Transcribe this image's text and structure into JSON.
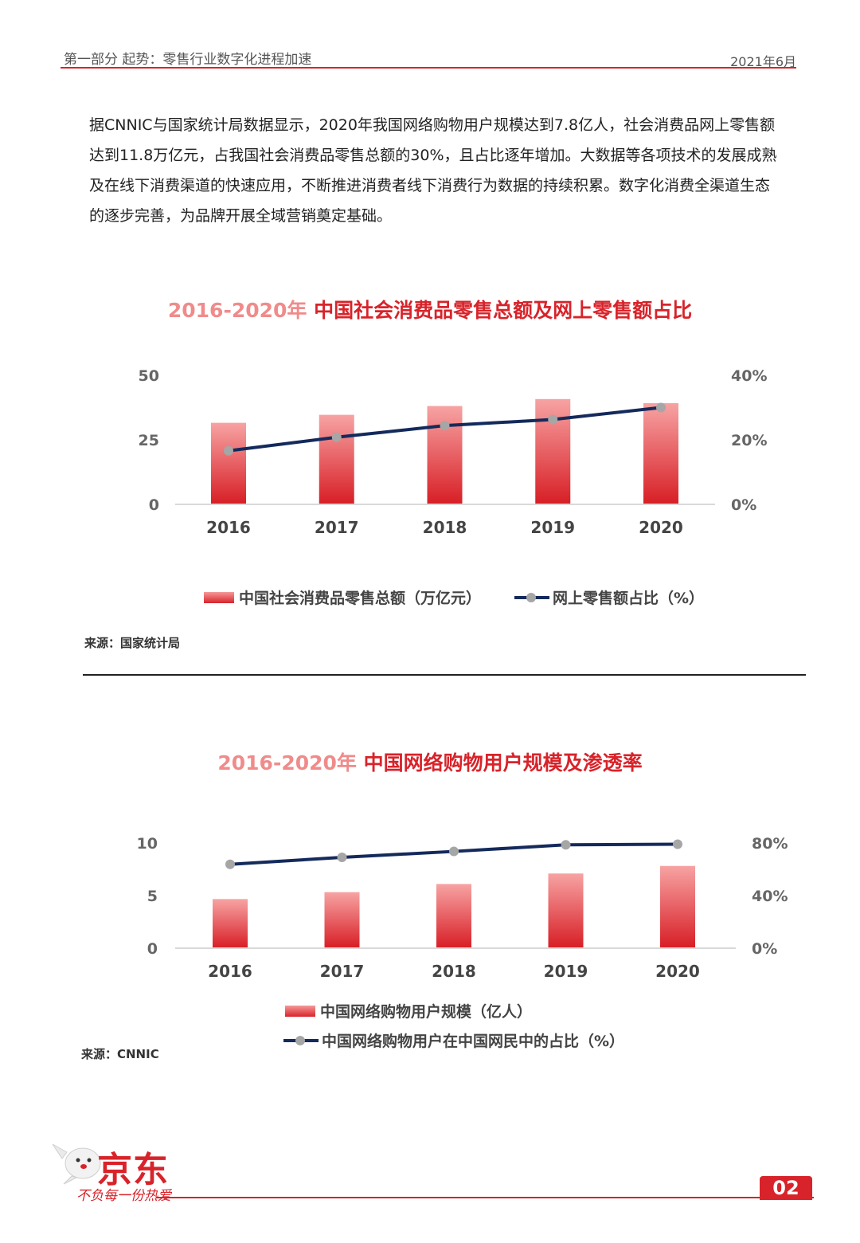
{
  "header": {
    "section": "第一部分 起势：零售行业数字化进程加速",
    "date": "2021年6月"
  },
  "intro": "据CNNIC与国家统计局数据显示，2020年我国网络购物用户规模达到7.8亿人，社会消费品网上零售额达到11.8万亿元，占我国社会消费品零售总额的30%，且占比逐年增加。大数据等各项技术的发展成熟及在线下消费渠道的快速应用，不断推进消费者线下消费行为数据的持续积累。数字化消费全渠道生态的逐步完善，为品牌开展全域营销奠定基础。",
  "chart1_title": {
    "years": "2016-2020年",
    "main": "中国社会消费品零售总额及网上零售额占比"
  },
  "chart2_title": {
    "years": "2016-2020年",
    "main": "中国网络购物用户规模及渗透率"
  },
  "chart1_legend": {
    "bar": "中国社会消费品零售总额（万亿元）",
    "line": "网上零售额占比（%）"
  },
  "chart2_legend": {
    "bar": "中国网络购物用户规模（亿人）",
    "line": "中国网络购物用户在中国网民中的占比（%）"
  },
  "chart1_source": "来源：国家统计局",
  "chart2_source": "来源：CNNIC",
  "logo": {
    "brand": "京东",
    "slogan": "不负每一份热爱"
  },
  "page_number": "02",
  "colors": {
    "accent": "#d8232a",
    "accent_light": "#f59a9a",
    "line": "#142a5c",
    "marker": "#a6a6a6"
  },
  "chart_data": [
    {
      "type": "bar",
      "categories": [
        "2016",
        "2017",
        "2018",
        "2019",
        "2020"
      ],
      "series": [
        {
          "name": "中国社会消费品零售总额（万亿元）",
          "type": "bar",
          "axis": "left",
          "values": [
            31.6,
            34.7,
            38.1,
            40.8,
            39.2
          ]
        },
        {
          "name": "网上零售额占比（%）",
          "type": "line",
          "axis": "right",
          "values": [
            16.6,
            20.8,
            24.4,
            26.3,
            30.0
          ]
        }
      ],
      "y_left": {
        "ylim": [
          0,
          50
        ],
        "ticks": [
          "0",
          "25",
          "50"
        ]
      },
      "y_right": {
        "ylim": [
          0,
          40
        ],
        "ticks": [
          "0%",
          "20%",
          "40%"
        ]
      },
      "legend": "bottom",
      "grid": false
    },
    {
      "type": "bar",
      "categories": [
        "2016",
        "2017",
        "2018",
        "2019",
        "2020"
      ],
      "series": [
        {
          "name": "中国网络购物用户规模（亿人）",
          "type": "bar",
          "axis": "left",
          "values": [
            4.67,
            5.33,
            6.1,
            7.1,
            7.82
          ]
        },
        {
          "name": "中国网络购物用户在中国网民中的占比（%）",
          "type": "line",
          "axis": "right",
          "values": [
            63.8,
            69.1,
            73.6,
            78.6,
            79.1
          ]
        }
      ],
      "y_left": {
        "ylim": [
          0,
          10
        ],
        "ticks": [
          "0",
          "5",
          "10"
        ]
      },
      "y_right": {
        "ylim": [
          0,
          80
        ],
        "ticks": [
          "0%",
          "40%",
          "80%"
        ]
      },
      "legend": "bottom",
      "grid": false
    }
  ]
}
